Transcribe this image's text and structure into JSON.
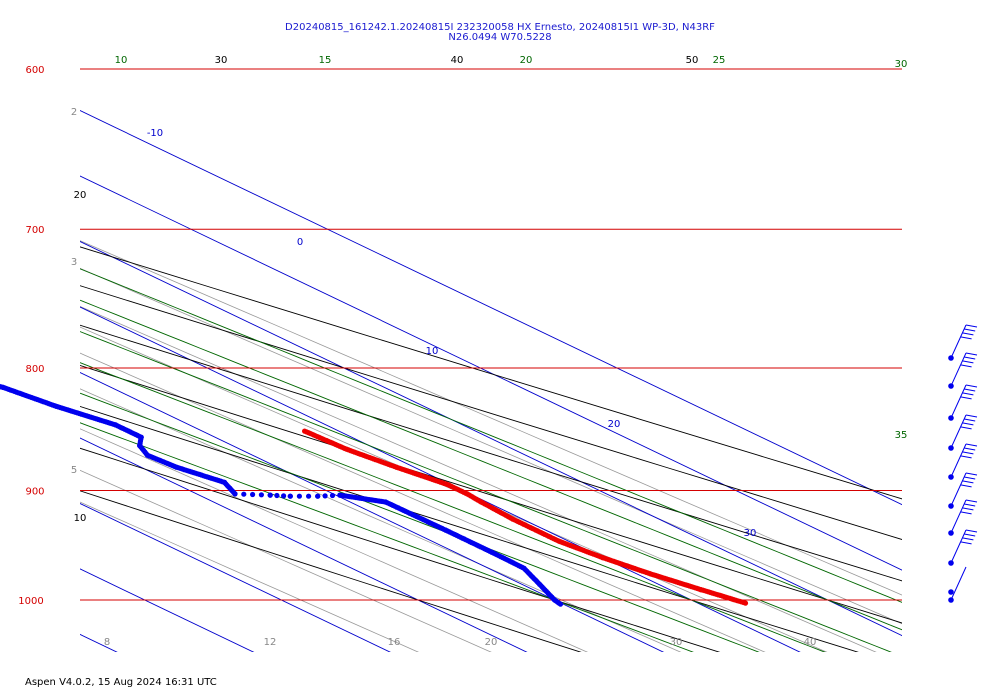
{
  "header": {
    "line1": "D20240815_161242.1.20240815I 232320058 HX Ernesto, 20240815I1 WP-3D, N43RF",
    "line2": "N26.0494 W70.5228"
  },
  "footer": "Aspen V4.0.2, 15 Aug 2024  16:31 UTC",
  "colors": {
    "isobar": "#d40000",
    "isotherm": "#0000cc",
    "dry_adiabat": "#000000",
    "moist_adiabat": "#006600",
    "mixing_ratio": "#999999",
    "temperature": "#ee0000",
    "dewpoint": "#0000ee"
  },
  "chart_data": {
    "type": "skew-t",
    "pressure_levels": [
      "600",
      "700",
      "800",
      "900",
      "1000"
    ],
    "isotherm_labels": [
      "-10",
      "0",
      "10",
      "20",
      "30"
    ],
    "dry_adiabat_labels": [
      "10",
      "20",
      "30",
      "40",
      "50"
    ],
    "moist_adiabat_labels": [
      "10",
      "15",
      "20",
      "25",
      "30",
      "35"
    ],
    "mixing_ratio_labels": [
      "2",
      "3",
      "5",
      "8",
      "12",
      "16",
      "20",
      "30",
      "40"
    ],
    "series": [
      {
        "key": "temperature",
        "points": [
          [
            850,
            17.5
          ],
          [
            865,
            17.8
          ],
          [
            880,
            18.7
          ],
          [
            895,
            19.8
          ],
          [
            903,
            19.8
          ],
          [
            910,
            19.6
          ],
          [
            925,
            19.3
          ],
          [
            945,
            19.3
          ],
          [
            960,
            20.0
          ],
          [
            975,
            21.0
          ],
          [
            990,
            22.3
          ],
          [
            1003,
            23.5
          ]
        ]
      },
      {
        "key": "dewpoint",
        "points": [
          [
            770,
            2.5
          ],
          [
            778,
            2.5
          ],
          [
            790,
            1.8
          ],
          [
            798,
            0.2
          ],
          [
            805,
            0.2
          ],
          [
            815,
            2.1
          ],
          [
            830,
            3.1
          ],
          [
            845,
            4.6
          ],
          [
            855,
            4.6
          ],
          [
            862,
            3.2
          ],
          [
            870,
            2.3
          ],
          [
            880,
            2.6
          ],
          [
            893,
            3.8
          ],
          [
            903,
            2.8
          ],
          [
            904,
            5.2
          ],
          [
            905,
            6.5
          ],
          [
            905,
            8.5
          ],
          [
            904,
            10.3
          ],
          [
            910,
            12.6
          ],
          [
            935,
            12.7
          ],
          [
            955,
            12.7
          ],
          [
            970,
            12.6
          ],
          [
            985,
            11.3
          ],
          [
            1000,
            10.0
          ],
          [
            1004,
            9.8
          ]
        ]
      }
    ],
    "wind_barb_count": 9
  }
}
